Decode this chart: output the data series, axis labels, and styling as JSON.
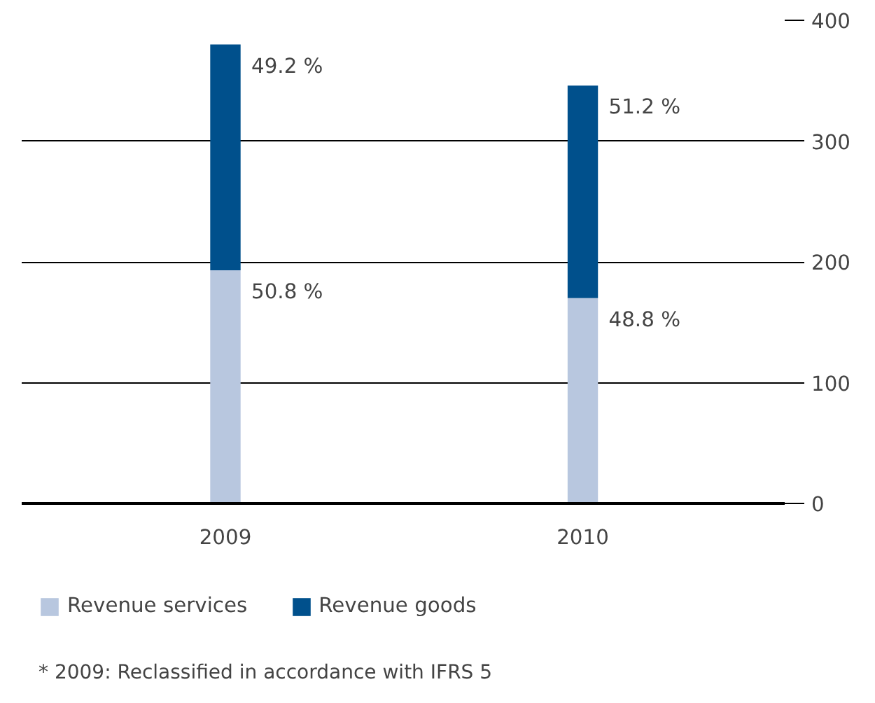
{
  "chart_data": {
    "type": "bar",
    "stacked": true,
    "categories": [
      "2009",
      "2010"
    ],
    "series": [
      {
        "name": "Revenue services",
        "color": "#b8c7df",
        "values": [
          193,
          170
        ]
      },
      {
        "name": "Revenue goods",
        "color": "#00508c",
        "values": [
          187,
          176
        ]
      }
    ],
    "ylim": [
      0,
      400
    ],
    "yticks": [
      0,
      100,
      200,
      300,
      400
    ],
    "grid": "y",
    "legend": "bottom",
    "annotations": [
      {
        "text": "50.8 %",
        "x": "2009",
        "y": 193
      },
      {
        "text": "49.2 %",
        "x": "2009",
        "y": 380
      },
      {
        "text": "48.8 %",
        "x": "2010",
        "y": 170
      },
      {
        "text": "51.2 %",
        "x": "2010",
        "y": 346
      },
      "* 2009: Reclassified in accordance with IFRS 5"
    ]
  }
}
